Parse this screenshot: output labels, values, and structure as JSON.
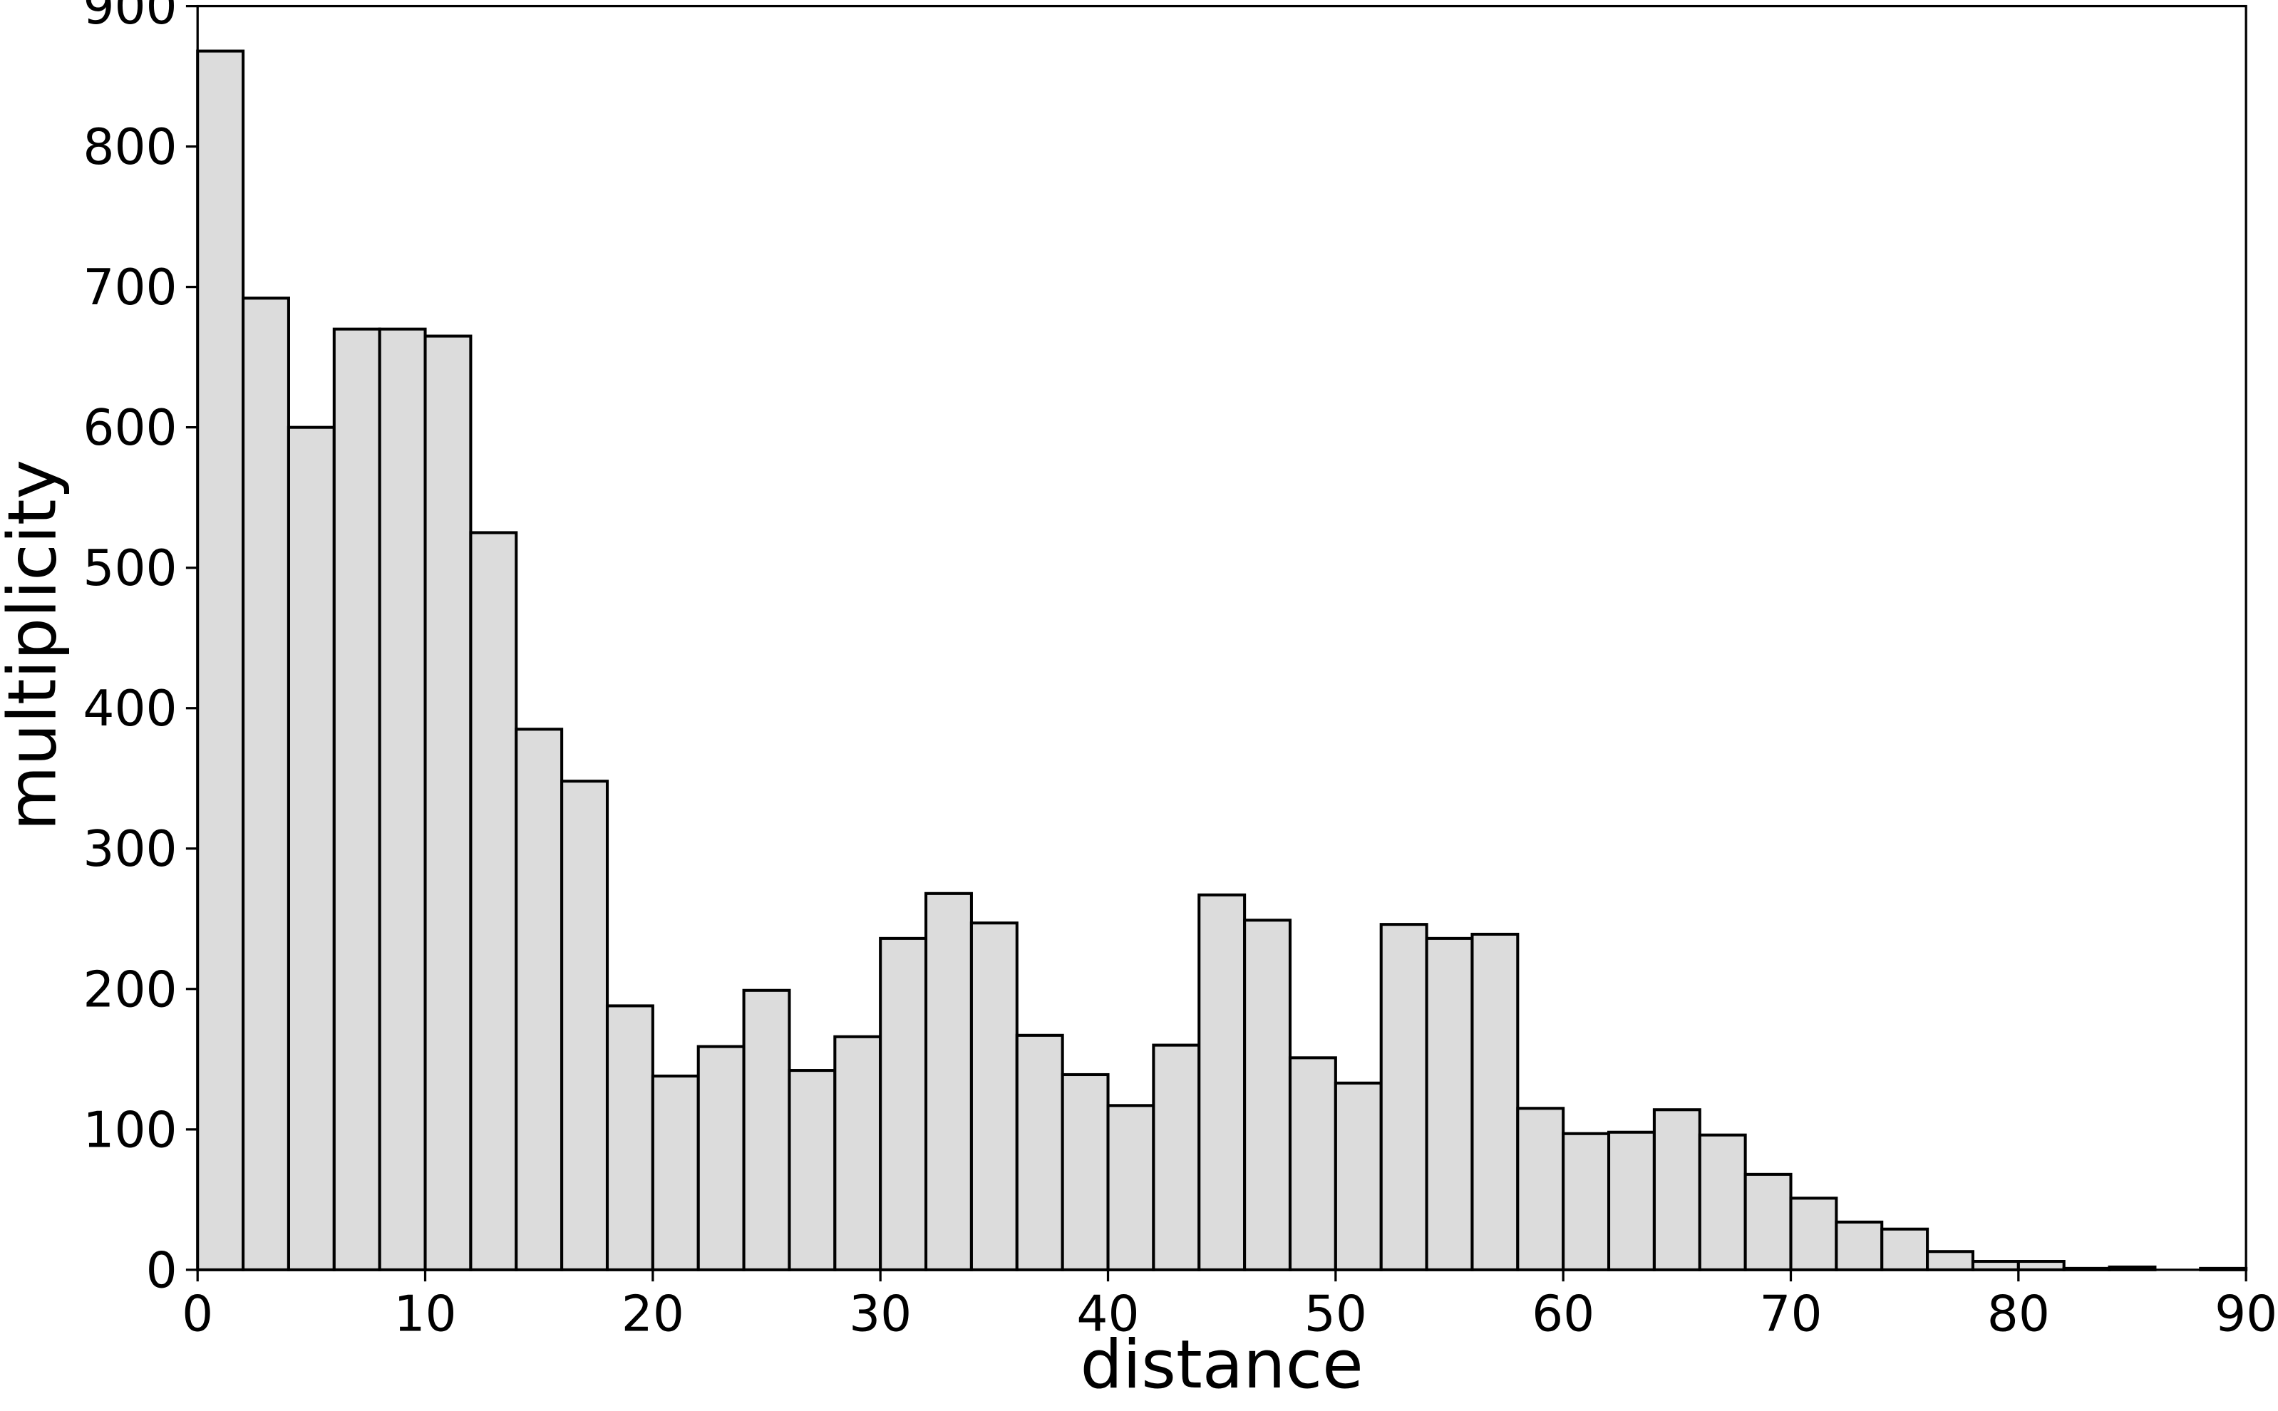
{
  "chart_data": {
    "type": "histogram",
    "x_label": "distance",
    "y_label": "multiplicity",
    "bins": [
      0,
      2,
      4,
      6,
      8,
      10,
      12,
      14,
      16,
      18,
      20,
      22,
      24,
      26,
      28,
      30,
      32,
      34,
      36,
      38,
      40,
      42,
      44,
      46,
      48,
      50,
      52,
      54,
      56,
      58,
      60,
      62,
      64,
      66,
      68,
      70,
      72,
      74,
      76,
      78,
      80,
      82,
      84,
      86,
      88,
      90
    ],
    "values": [
      868,
      692,
      600,
      670,
      670,
      665,
      525,
      385,
      348,
      188,
      138,
      159,
      199,
      142,
      166,
      236,
      268,
      247,
      167,
      139,
      117,
      160,
      267,
      249,
      151,
      133,
      246,
      236,
      239,
      115,
      97,
      98,
      114,
      96,
      68,
      51,
      34,
      29,
      13,
      6,
      6,
      1,
      2,
      0,
      1
    ],
    "color": "#dcdcdc",
    "xlim": [
      0,
      90
    ],
    "xticks": [
      0,
      10,
      20,
      30,
      40,
      50,
      60,
      70,
      80,
      90
    ],
    "ylim": [
      0,
      900
    ],
    "yticks": [
      0,
      100,
      200,
      300,
      400,
      500,
      600,
      700,
      800,
      900
    ]
  }
}
